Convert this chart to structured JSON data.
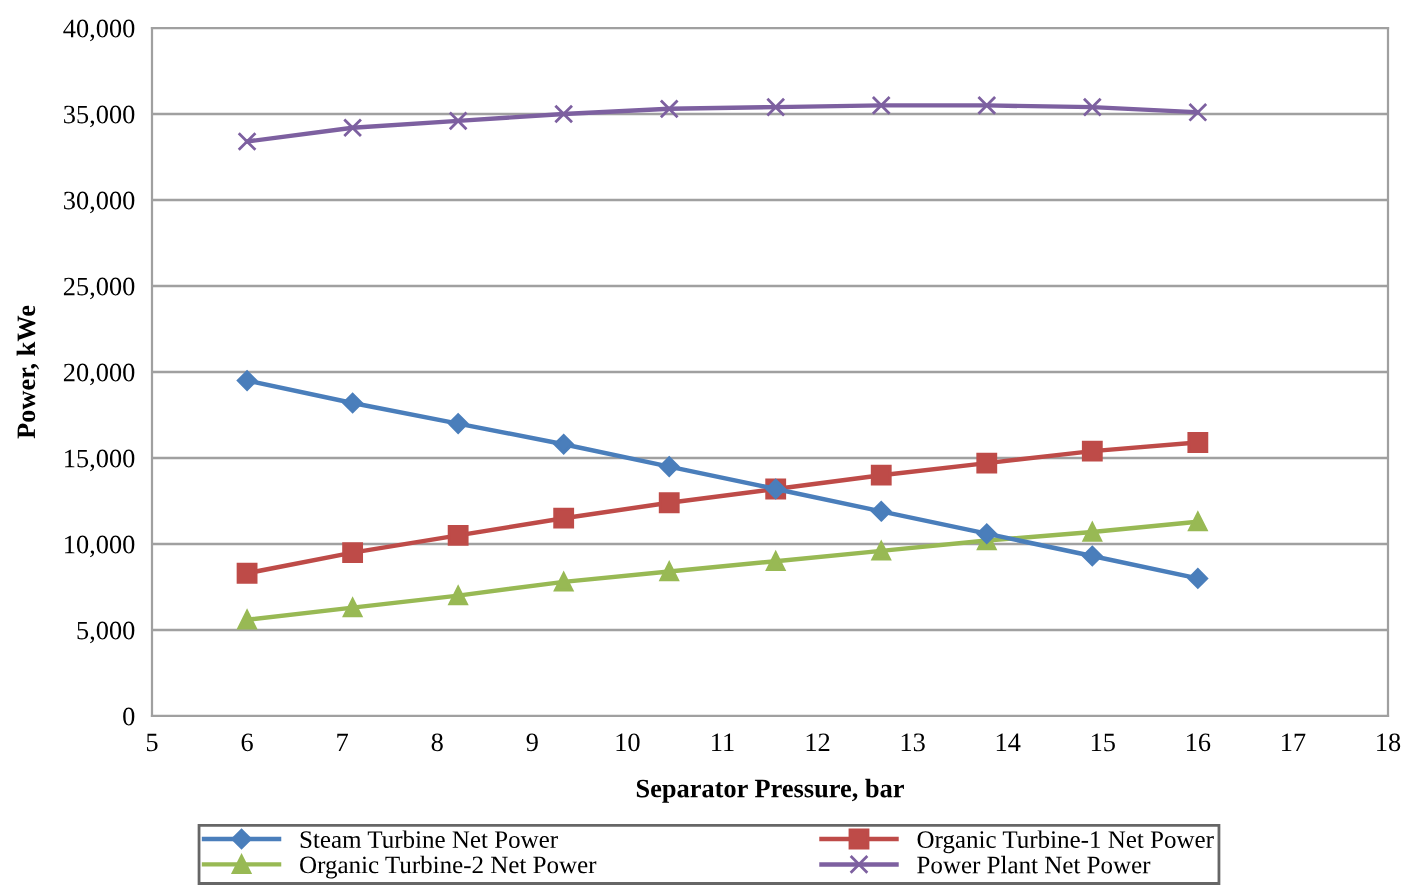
{
  "chart_data": {
    "type": "line",
    "xlabel": "Separator Pressure, bar",
    "ylabel": "Power, kWe",
    "x": [
      6,
      7.11,
      8.22,
      9.33,
      10.44,
      11.56,
      12.67,
      13.78,
      14.89,
      16
    ],
    "series": [
      {
        "name": "Steam Turbine Net Power",
        "color": "#4a7ebb",
        "marker": "diamond",
        "values": [
          19500,
          18200,
          17000,
          15800,
          14500,
          13200,
          11900,
          10600,
          9300,
          8000
        ]
      },
      {
        "name": "Organic Turbine-1 Net Power",
        "color": "#be4b48",
        "marker": "square",
        "values": [
          8300,
          9500,
          10500,
          11500,
          12400,
          13200,
          14000,
          14700,
          15400,
          15900
        ]
      },
      {
        "name": "Organic Turbine-2 Net Power",
        "color": "#98b954",
        "marker": "triangle",
        "values": [
          5600,
          6300,
          7000,
          7800,
          8400,
          9000,
          9600,
          10200,
          10700,
          11300
        ]
      },
      {
        "name": "Power Plant Net Power",
        "color": "#7d60a0",
        "marker": "cross",
        "values": [
          33400,
          34200,
          34600,
          35000,
          35300,
          35400,
          35500,
          35500,
          35400,
          35100
        ]
      }
    ],
    "xlim": [
      5,
      18
    ],
    "xticks": [
      5,
      6,
      7,
      8,
      9,
      10,
      11,
      12,
      13,
      14,
      15,
      16,
      17,
      18
    ],
    "ylim": [
      0,
      40000
    ],
    "yticks": [
      0,
      {
        "value": 5000,
        "label": "5,000"
      },
      {
        "value": 10000,
        "label": "10,000"
      },
      {
        "value": 15000,
        "label": "15,000"
      },
      {
        "value": 20000,
        "label": "20,000"
      },
      {
        "value": 25000,
        "label": "25,000"
      },
      {
        "value": 30000,
        "label": "30,000"
      },
      {
        "value": 35000,
        "label": "35,000"
      },
      {
        "value": 40000,
        "label": "40,000"
      }
    ],
    "grid": "y",
    "legend": "bottom",
    "line_style": "solid"
  }
}
